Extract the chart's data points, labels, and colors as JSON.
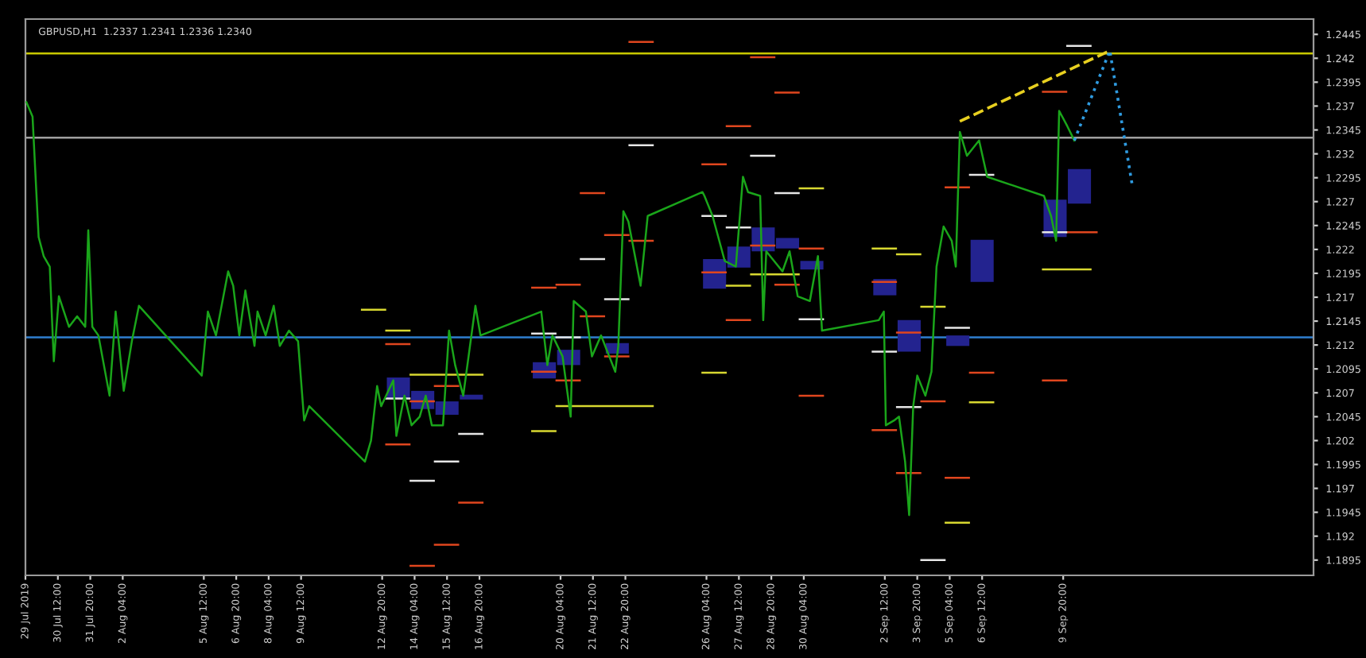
{
  "chart_data": {
    "type": "line",
    "title": "GBPUSD,H1  1.2337 1.2341 1.2336 1.2340",
    "xlim": [
      "2019-07-29T04:00",
      "2019-09-20T03:00"
    ],
    "ylim": [
      1.1879,
      1.2461
    ],
    "xticks": [
      {
        "value": "2019-07-29T04:00",
        "label": "29 Jul 2019"
      },
      {
        "value": "2019-07-30T12:00",
        "label": "30 Jul 12:00"
      },
      {
        "value": "2019-07-31T20:00",
        "label": "31 Jul 20:00"
      },
      {
        "value": "2019-08-02T04:00",
        "label": "2 Aug 04:00"
      },
      {
        "value": "2019-08-05T12:00",
        "label": "5 Aug 12:00"
      },
      {
        "value": "2019-08-06T20:00",
        "label": "6 Aug 20:00"
      },
      {
        "value": "2019-08-08T04:00",
        "label": "8 Aug 04:00"
      },
      {
        "value": "2019-08-09T12:00",
        "label": "9 Aug 12:00"
      },
      {
        "value": "2019-08-12T20:00",
        "label": "12 Aug 20:00"
      },
      {
        "value": "2019-08-14T04:00",
        "label": "14 Aug 04:00"
      },
      {
        "value": "2019-08-15T12:00",
        "label": "15 Aug 12:00"
      },
      {
        "value": "2019-08-16T20:00",
        "label": "16 Aug 20:00"
      },
      {
        "value": "2019-08-20T04:00",
        "label": "20 Aug 04:00"
      },
      {
        "value": "2019-08-21T12:00",
        "label": "21 Aug 12:00"
      },
      {
        "value": "2019-08-22T20:00",
        "label": "22 Aug 20:00"
      },
      {
        "value": "2019-08-26T04:00",
        "label": "26 Aug 04:00"
      },
      {
        "value": "2019-08-27T12:00",
        "label": "27 Aug 12:00"
      },
      {
        "value": "2019-08-28T20:00",
        "label": "28 Aug 20:00"
      },
      {
        "value": "2019-08-30T04:00",
        "label": "30 Aug 04:00"
      },
      {
        "value": "2019-09-02T12:00",
        "label": "2 Sep 12:00"
      },
      {
        "value": "2019-09-03T20:00",
        "label": "3 Sep 20:00"
      },
      {
        "value": "2019-09-05T04:00",
        "label": "5 Sep 04:00"
      },
      {
        "value": "2019-09-06T12:00",
        "label": "6 Sep 12:00"
      },
      {
        "value": "2019-09-09T20:00",
        "label": "9 Sep 20:00"
      }
    ],
    "yticks": [
      1.1895,
      1.192,
      1.1945,
      1.197,
      1.1995,
      1.202,
      1.2045,
      1.207,
      1.2095,
      1.212,
      1.2145,
      1.217,
      1.2195,
      1.222,
      1.2245,
      1.227,
      1.2295,
      1.232,
      1.2345,
      1.237,
      1.2395,
      1.242,
      1.2445
    ],
    "grid": false,
    "legend": false,
    "ref_lines": [
      {
        "axis": "y",
        "value": 1.2425,
        "color": "#c8c800"
      },
      {
        "axis": "y",
        "value": 1.2337,
        "color": "#a0a0a0"
      },
      {
        "axis": "y",
        "value": 1.2128,
        "color": "#2f7fd0"
      }
    ],
    "series": [
      {
        "type": "bar",
        "color": "#23238f",
        "x": [
          "2019-08-13T12:00",
          "2019-08-14T12:00",
          "2019-08-15T12:00",
          "2019-08-16T12:00",
          "2019-08-19T12:00",
          "2019-08-20T12:00",
          "2019-08-22T12:00",
          "2019-08-26T12:00",
          "2019-08-27T12:00",
          "2019-08-28T12:00",
          "2019-08-29T12:00",
          "2019-08-30T12:00",
          "2019-09-02T12:00",
          "2019-09-03T12:00",
          "2019-09-05T12:00",
          "2019-09-06T12:00",
          "2019-09-09T12:00",
          "2019-09-10T12:00"
        ],
        "base": [
          1.2064,
          1.2053,
          1.2047,
          1.2063,
          1.2085,
          1.2099,
          1.2111,
          1.2179,
          1.2201,
          1.2218,
          1.2221,
          1.2199,
          1.2172,
          1.2113,
          1.2119,
          1.2186,
          1.2233,
          1.2268
        ],
        "values": [
          0.0022,
          0.0019,
          0.0014,
          0.0005,
          0.0017,
          0.0016,
          0.0011,
          0.0031,
          0.0022,
          0.0025,
          0.0011,
          0.0009,
          0.0017,
          0.0033,
          0.0011,
          0.0044,
          0.0039,
          0.0036
        ]
      },
      {
        "type": "line",
        "color": "#d8d830",
        "x": [
          "2019-08-12T00:00",
          "2019-08-12T23:00",
          "2019-08-12T23:30",
          "2019-08-13T00:00",
          "2019-08-13T23:00",
          "2019-08-13T23:30",
          "2019-08-14T00:00",
          "2019-08-16T23:00",
          "2019-08-16T23:30",
          "2019-08-19T00:00",
          "2019-08-19T23:00",
          "2019-08-19T23:30",
          "2019-08-20T00:00",
          "2019-08-23T23:00",
          "2019-08-23T23:30",
          "2019-08-26T00:00",
          "2019-08-26T23:00",
          "2019-08-26T23:30",
          "2019-08-27T00:00",
          "2019-08-27T23:00",
          "2019-08-27T23:30",
          "2019-08-28T00:00",
          "2019-08-29T23:00",
          "2019-08-29T23:30",
          "2019-08-30T00:00",
          "2019-08-30T23:00",
          "2019-08-30T23:30",
          "2019-09-02T00:00",
          "2019-09-02T23:00",
          "2019-09-02T23:30",
          "2019-09-03T00:00",
          "2019-09-03T23:00",
          "2019-09-03T23:30",
          "2019-09-04T00:00",
          "2019-09-04T23:00",
          "2019-09-04T23:30",
          "2019-09-05T00:00",
          "2019-09-05T23:00",
          "2019-09-05T23:30",
          "2019-09-06T00:00",
          "2019-09-06T23:00",
          "2019-09-06T23:30",
          "2019-09-09T00:00",
          "2019-09-10T23:00"
        ],
        "values": [
          1.2157,
          1.2157,
          null,
          1.2135,
          1.2135,
          null,
          1.2089,
          1.2089,
          null,
          1.203,
          1.203,
          null,
          1.2056,
          1.2056,
          null,
          1.2091,
          1.2091,
          null,
          1.2182,
          1.2182,
          null,
          1.2194,
          1.2194,
          null,
          1.2284,
          1.2284,
          null,
          1.2221,
          1.2221,
          null,
          1.2215,
          1.2215,
          null,
          1.216,
          1.216,
          null,
          1.1934,
          1.1934,
          null,
          1.206,
          1.206,
          null,
          1.2199,
          1.2199
        ]
      },
      {
        "type": "line",
        "color": "#e0461e",
        "x": [
          "2019-08-13T00:00",
          "2019-08-13T23:00",
          "2019-08-13T23:30",
          "2019-08-14T00:00",
          "2019-08-14T23:00",
          "2019-08-14T23:30",
          "2019-08-15T00:00",
          "2019-08-15T23:00",
          "2019-08-15T23:30",
          "2019-08-16T00:00",
          "2019-08-16T23:00",
          "2019-08-16T23:30",
          "2019-08-19T00:00",
          "2019-08-19T23:00",
          "2019-08-19T23:30",
          "2019-08-20T00:00",
          "2019-08-20T23:00",
          "2019-08-20T23:30",
          "2019-08-21T00:00",
          "2019-08-21T23:00",
          "2019-08-21T23:30",
          "2019-08-22T00:00",
          "2019-08-22T23:00",
          "2019-08-22T23:30",
          "2019-08-23T00:00",
          "2019-08-23T23:00",
          "2019-08-23T23:30",
          "2019-08-26T00:00",
          "2019-08-26T23:00",
          "2019-08-26T23:30",
          "2019-08-27T00:00",
          "2019-08-27T23:00",
          "2019-08-27T23:30",
          "2019-08-28T00:00",
          "2019-08-28T23:00",
          "2019-08-28T23:30",
          "2019-08-29T00:00",
          "2019-08-29T23:00",
          "2019-08-29T23:30",
          "2019-08-30T00:00",
          "2019-08-30T23:00",
          "2019-08-30T23:30",
          "2019-09-02T00:00",
          "2019-09-02T23:00",
          "2019-09-02T23:30",
          "2019-09-03T00:00",
          "2019-09-03T23:00",
          "2019-09-03T23:30",
          "2019-09-04T00:00",
          "2019-09-04T23:00",
          "2019-09-04T23:30",
          "2019-09-05T00:00",
          "2019-09-05T23:00",
          "2019-09-05T23:30",
          "2019-09-06T00:00",
          "2019-09-06T23:00",
          "2019-09-06T23:30",
          "2019-09-09T00:00",
          "2019-09-09T23:00",
          "2019-09-09T23:30",
          "2019-09-10T00:00",
          "2019-09-11T05:00"
        ],
        "values": [
          1.2121,
          1.2121,
          null,
          1.2061,
          1.2061,
          null,
          1.2077,
          1.2077,
          null,
          1.1955,
          1.1955,
          null,
          1.218,
          1.218,
          null,
          1.2183,
          1.2183,
          null,
          1.2279,
          1.2279,
          null,
          1.2235,
          1.2235,
          null,
          1.2437,
          1.2437,
          null,
          1.2309,
          1.2309,
          null,
          1.2349,
          1.2349,
          null,
          1.2421,
          1.2421,
          null,
          1.2384,
          1.2384,
          null,
          1.2221,
          1.2221,
          null,
          1.2186,
          1.2186,
          null,
          1.2133,
          1.2133,
          null,
          1.2061,
          1.2061,
          null,
          1.2285,
          1.2285,
          null,
          1.2091,
          1.2091,
          null,
          1.2385,
          1.2385,
          null,
          1.2238,
          1.2238
        ]
      },
      {
        "type": "line",
        "color": "#e0461e",
        "x": [
          "2019-08-13T00:00",
          "2019-08-13T23:00",
          "2019-08-13T23:30",
          "2019-08-14T00:00",
          "2019-08-14T23:00",
          "2019-08-14T23:30",
          "2019-08-15T00:00",
          "2019-08-15T23:00",
          "2019-08-15T23:30",
          "2019-08-19T00:00",
          "2019-08-19T23:00",
          "2019-08-19T23:30",
          "2019-08-20T00:00",
          "2019-08-20T23:00",
          "2019-08-20T23:30",
          "2019-08-21T00:00",
          "2019-08-21T23:00",
          "2019-08-21T23:30",
          "2019-08-22T00:00",
          "2019-08-22T23:00",
          "2019-08-22T23:30",
          "2019-08-23T00:00",
          "2019-08-23T23:00",
          "2019-08-23T23:30",
          "2019-08-26T00:00",
          "2019-08-26T23:00",
          "2019-08-26T23:30",
          "2019-08-27T00:00",
          "2019-08-27T23:00",
          "2019-08-27T23:30",
          "2019-08-28T00:00",
          "2019-08-28T23:00",
          "2019-08-28T23:30",
          "2019-08-29T00:00",
          "2019-08-29T23:00",
          "2019-08-29T23:30",
          "2019-08-30T00:00",
          "2019-08-30T23:00",
          "2019-08-30T23:30",
          "2019-09-02T00:00",
          "2019-09-02T23:00",
          "2019-09-02T23:30",
          "2019-09-03T00:00",
          "2019-09-03T23:00",
          "2019-09-03T23:30",
          "2019-09-05T00:00",
          "2019-09-05T23:00",
          "2019-09-05T23:30",
          "2019-09-09T00:00",
          "2019-09-09T23:00"
        ],
        "values": [
          1.2016,
          1.2016,
          null,
          1.1889,
          1.1889,
          null,
          1.1911,
          1.1911,
          null,
          1.2092,
          1.2092,
          null,
          1.2083,
          1.2083,
          null,
          1.215,
          1.215,
          null,
          1.2108,
          1.2108,
          null,
          1.2229,
          1.2229,
          null,
          1.2196,
          1.2196,
          null,
          1.2146,
          1.2146,
          null,
          1.2224,
          1.2224,
          null,
          1.2183,
          1.2183,
          null,
          1.2067,
          1.2067,
          null,
          1.2031,
          1.2031,
          null,
          1.1986,
          1.1986,
          null,
          1.1981,
          1.1981,
          null,
          1.2083,
          1.2083
        ]
      },
      {
        "type": "line",
        "color": "#e6e6e6",
        "x": [
          "2019-08-13T00:00",
          "2019-08-13T23:00",
          "2019-08-13T23:30",
          "2019-08-14T00:00",
          "2019-08-14T23:00",
          "2019-08-14T23:30",
          "2019-08-15T00:00",
          "2019-08-15T23:00",
          "2019-08-15T23:30",
          "2019-08-16T00:00",
          "2019-08-16T23:00",
          "2019-08-16T23:30",
          "2019-08-19T00:00",
          "2019-08-19T23:00",
          "2019-08-19T23:30",
          "2019-08-20T00:00",
          "2019-08-20T23:00",
          "2019-08-20T23:30",
          "2019-08-21T00:00",
          "2019-08-21T23:00",
          "2019-08-21T23:30",
          "2019-08-22T00:00",
          "2019-08-22T23:00",
          "2019-08-22T23:30",
          "2019-08-23T00:00",
          "2019-08-23T23:00",
          "2019-08-23T23:30",
          "2019-08-26T00:00",
          "2019-08-26T23:00",
          "2019-08-26T23:30",
          "2019-08-27T00:00",
          "2019-08-27T23:00",
          "2019-08-27T23:30",
          "2019-08-28T00:00",
          "2019-08-28T23:00",
          "2019-08-28T23:30",
          "2019-08-29T00:00",
          "2019-08-29T23:00",
          "2019-08-29T23:30",
          "2019-08-30T00:00",
          "2019-08-30T23:00",
          "2019-08-30T23:30",
          "2019-09-02T00:00",
          "2019-09-02T23:00",
          "2019-09-02T23:30",
          "2019-09-03T00:00",
          "2019-09-03T23:00",
          "2019-09-03T23:30",
          "2019-09-04T00:00",
          "2019-09-04T23:00",
          "2019-09-04T23:30",
          "2019-09-05T00:00",
          "2019-09-05T23:00",
          "2019-09-05T23:30",
          "2019-09-06T00:00",
          "2019-09-06T23:00",
          "2019-09-06T23:30",
          "2019-09-09T00:00",
          "2019-09-09T23:00",
          "2019-09-09T23:30",
          "2019-09-10T00:00",
          "2019-09-10T23:00"
        ],
        "values": [
          1.2064,
          1.2064,
          null,
          1.1978,
          1.1978,
          null,
          1.1998,
          1.1998,
          null,
          1.2027,
          1.2027,
          null,
          1.2132,
          1.2132,
          null,
          1.2128,
          1.2128,
          null,
          1.221,
          1.221,
          null,
          1.2168,
          1.2168,
          null,
          1.2329,
          1.2329,
          null,
          1.2255,
          1.2255,
          null,
          1.2243,
          1.2243,
          null,
          1.2318,
          1.2318,
          null,
          1.2279,
          1.2279,
          null,
          1.2147,
          1.2147,
          null,
          1.2113,
          1.2113,
          null,
          1.2055,
          1.2055,
          null,
          1.1895,
          1.1895,
          null,
          1.2138,
          1.2138,
          null,
          1.2298,
          1.2298,
          null,
          1.2238,
          1.2238,
          null,
          1.2433,
          1.2433
        ]
      },
      {
        "color": "#1aa51a",
        "x": [
          "2019-07-29T05:00",
          "2019-07-29T11:00",
          "2019-07-29T17:00",
          "2019-07-29T22:00",
          "2019-07-30T04:00",
          "2019-07-30T08:00",
          "2019-07-30T13:00",
          "2019-07-30T23:00",
          "2019-07-31T07:00",
          "2019-07-31T15:00",
          "2019-07-31T18:00",
          "2019-07-31T22:00",
          "2019-08-01T04:00",
          "2019-08-01T15:00",
          "2019-08-01T21:00",
          "2019-08-02T05:00",
          "2019-08-02T13:00",
          "2019-08-02T20:00",
          "2019-08-05T10:00",
          "2019-08-05T16:00",
          "2019-08-06T00:00",
          "2019-08-06T12:00",
          "2019-08-06T17:00",
          "2019-08-06T23:00",
          "2019-08-07T05:00",
          "2019-08-07T14:00",
          "2019-08-07T17:00",
          "2019-08-08T01:00",
          "2019-08-08T09:00",
          "2019-08-08T15:00",
          "2019-08-09T00:00",
          "2019-08-09T09:00",
          "2019-08-09T15:00",
          "2019-08-09T20:00",
          "2019-08-12T03:00",
          "2019-08-12T09:00",
          "2019-08-12T15:00",
          "2019-08-12T19:00",
          "2019-08-13T07:00",
          "2019-08-13T10:00",
          "2019-08-13T18:00",
          "2019-08-14T01:00",
          "2019-08-14T09:00",
          "2019-08-14T15:00",
          "2019-08-14T21:00",
          "2019-08-15T08:00",
          "2019-08-15T14:00",
          "2019-08-15T20:00",
          "2019-08-16T04:00",
          "2019-08-16T16:00",
          "2019-08-16T21:00",
          "2019-08-19T09:00",
          "2019-08-19T15:00",
          "2019-08-19T20:00",
          "2019-08-20T06:00",
          "2019-08-20T14:00",
          "2019-08-20T17:00",
          "2019-08-21T05:00",
          "2019-08-21T11:00",
          "2019-08-21T20:00",
          "2019-08-22T10:00",
          "2019-08-22T13:00",
          "2019-08-22T18:00",
          "2019-08-22T23:00",
          "2019-08-23T11:00",
          "2019-08-23T18:00",
          "2019-08-26T00:00",
          "2019-08-26T02:00",
          "2019-08-26T10:00",
          "2019-08-26T22:00",
          "2019-08-27T09:00",
          "2019-08-27T16:00",
          "2019-08-27T21:00",
          "2019-08-28T09:00",
          "2019-08-28T12:00",
          "2019-08-28T15:00",
          "2019-08-29T07:00",
          "2019-08-29T14:00",
          "2019-08-29T22:00",
          "2019-08-30T10:00",
          "2019-08-30T18:00",
          "2019-08-30T22:00",
          "2019-09-02T06:00",
          "2019-09-02T11:00",
          "2019-09-02T13:00",
          "2019-09-02T21:00",
          "2019-09-03T02:00",
          "2019-09-03T08:00",
          "2019-09-03T12:00",
          "2019-09-03T16:00",
          "2019-09-03T20:00",
          "2019-09-04T04:00",
          "2019-09-04T10:00",
          "2019-09-04T15:00",
          "2019-09-04T22:00",
          "2019-09-05T06:00",
          "2019-09-05T10:00",
          "2019-09-05T14:00",
          "2019-09-05T21:00",
          "2019-09-06T09:00",
          "2019-09-06T17:00",
          "2019-09-09T01:00",
          "2019-09-09T08:00",
          "2019-09-09T13:00",
          "2019-09-09T16:00",
          "2019-09-10T00:00",
          "2019-09-10T07:00"
        ],
        "values": [
          1.2374,
          1.2359,
          1.2233,
          1.2213,
          1.2202,
          1.2103,
          1.2171,
          1.2139,
          1.215,
          1.2139,
          1.224,
          1.2139,
          1.213,
          1.2067,
          1.2155,
          1.2072,
          1.2124,
          1.2161,
          1.2088,
          1.2155,
          1.213,
          1.2197,
          1.2182,
          1.213,
          1.2177,
          1.2119,
          1.2155,
          1.213,
          1.2161,
          1.2119,
          1.2135,
          1.2124,
          1.2041,
          1.2056,
          1.1998,
          1.202,
          1.2077,
          1.2056,
          1.2083,
          1.2025,
          1.2067,
          1.2036,
          1.2045,
          1.2067,
          1.2036,
          1.2036,
          1.2135,
          1.2099,
          1.2067,
          1.2161,
          1.213,
          1.2155,
          1.2099,
          1.213,
          1.2108,
          1.2045,
          1.2166,
          1.2155,
          1.2108,
          1.213,
          1.2092,
          1.2119,
          1.226,
          1.2249,
          1.2182,
          1.2255,
          1.228,
          1.2276,
          1.2255,
          1.2208,
          1.2202,
          1.2296,
          1.228,
          1.2276,
          1.2146,
          1.2218,
          1.2197,
          1.2218,
          1.2171,
          1.2166,
          1.2213,
          1.2135,
          1.2146,
          1.2155,
          1.2036,
          1.2041,
          1.2045,
          1.1998,
          1.1942,
          1.2056,
          1.2088,
          1.2067,
          1.2092,
          1.2202,
          1.2244,
          1.2229,
          1.2202,
          1.2343,
          1.2318,
          1.2334,
          1.2296,
          1.2276,
          1.2255,
          1.2229,
          1.2365,
          1.2349,
          1.2334
        ]
      },
      {
        "type": "line",
        "color": "#e8d020",
        "line_style": "dashed",
        "x": [
          "2019-09-05T14:00",
          "2019-09-11T18:00"
        ],
        "values": [
          1.2354,
          1.2428
        ]
      },
      {
        "type": "line",
        "color": "#2f9be0",
        "line_style": "dotted",
        "x": [
          "2019-09-10T07:00",
          "2019-09-11T18:00",
          "2019-09-12T16:00"
        ],
        "values": [
          1.2334,
          1.2428,
          1.2288
        ]
      }
    ]
  }
}
